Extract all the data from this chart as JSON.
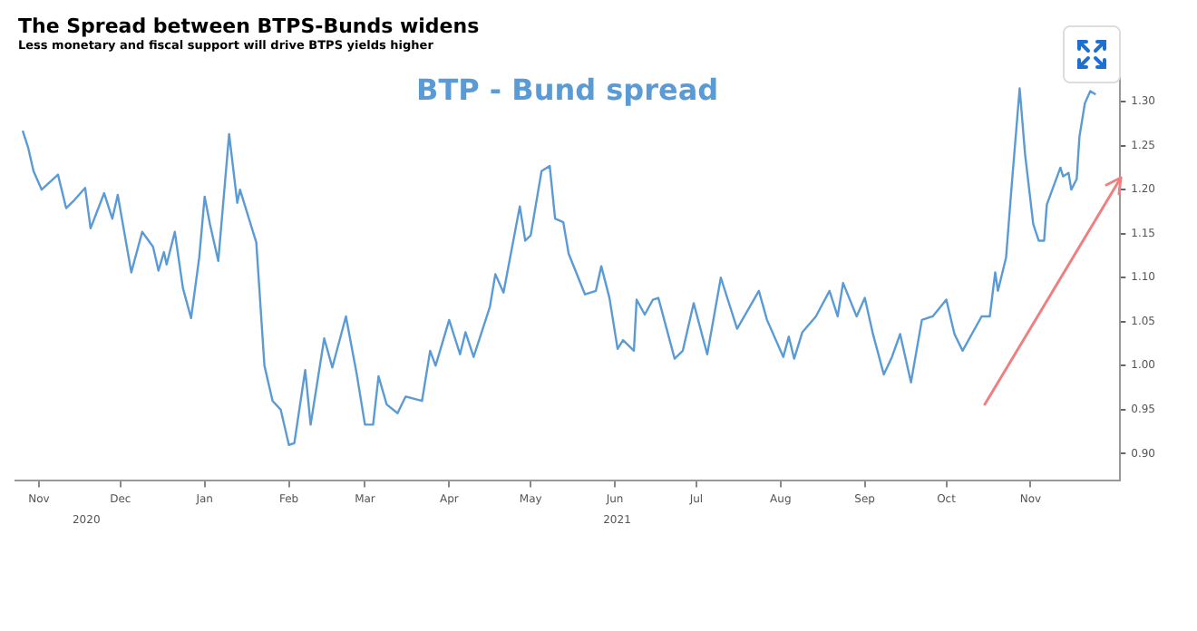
{
  "chart_data": {
    "type": "line",
    "title": "The Spread between BTPS-Bunds widens",
    "subtitle": "Less monetary and fiscal support will drive BTPS yields higher",
    "x": [
      "2020-10-26",
      "2020-10-28",
      "2020-10-30",
      "2020-11-02",
      "2020-11-08",
      "2020-11-11",
      "2020-11-14",
      "2020-11-18",
      "2020-11-20",
      "2020-11-25",
      "2020-11-28",
      "2020-11-30",
      "2020-12-05",
      "2020-12-09",
      "2020-12-13",
      "2020-12-15",
      "2020-12-17",
      "2020-12-18",
      "2020-12-21",
      "2020-12-24",
      "2020-12-27",
      "2020-12-30",
      "2021-01-01",
      "2021-01-03",
      "2021-01-06",
      "2021-01-10",
      "2021-01-13",
      "2021-01-14",
      "2021-01-20",
      "2021-01-23",
      "2021-01-26",
      "2021-01-29",
      "2021-02-01",
      "2021-02-03",
      "2021-02-07",
      "2021-02-09",
      "2021-02-14",
      "2021-02-17",
      "2021-02-22",
      "2021-02-26",
      "2021-03-01",
      "2021-03-04",
      "2021-03-06",
      "2021-03-09",
      "2021-03-13",
      "2021-03-16",
      "2021-03-22",
      "2021-03-25",
      "2021-03-27",
      "2021-04-01",
      "2021-04-05",
      "2021-04-07",
      "2021-04-10",
      "2021-04-16",
      "2021-04-18",
      "2021-04-21",
      "2021-04-27",
      "2021-04-29",
      "2021-05-01",
      "2021-05-05",
      "2021-05-08",
      "2021-05-10",
      "2021-05-13",
      "2021-05-15",
      "2021-05-21",
      "2021-05-25",
      "2021-05-27",
      "2021-05-30",
      "2021-06-02",
      "2021-06-04",
      "2021-06-08",
      "2021-06-09",
      "2021-06-12",
      "2021-06-15",
      "2021-06-17",
      "2021-06-23",
      "2021-06-26",
      "2021-06-30",
      "2021-07-05",
      "2021-07-10",
      "2021-07-16",
      "2021-07-24",
      "2021-07-27",
      "2021-08-02",
      "2021-08-04",
      "2021-08-06",
      "2021-08-09",
      "2021-08-14",
      "2021-08-19",
      "2021-08-22",
      "2021-08-24",
      "2021-08-29",
      "2021-09-01",
      "2021-09-04",
      "2021-09-08",
      "2021-09-11",
      "2021-09-14",
      "2021-09-18",
      "2021-09-22",
      "2021-09-26",
      "2021-10-01",
      "2021-10-04",
      "2021-10-07",
      "2021-10-14",
      "2021-10-17",
      "2021-10-19",
      "2021-10-20",
      "2021-10-23",
      "2021-10-25",
      "2021-10-28",
      "2021-10-30",
      "2021-11-02",
      "2021-11-04",
      "2021-11-06",
      "2021-11-07",
      "2021-11-12",
      "2021-11-13",
      "2021-11-15",
      "2021-11-16",
      "2021-11-18",
      "2021-11-19",
      "2021-11-21",
      "2021-11-23",
      "2021-11-25"
    ],
    "series": [
      {
        "name": "BTP - Bund spread",
        "color": "#5b9bd5",
        "values": [
          1.267,
          1.248,
          1.221,
          1.2,
          1.217,
          1.179,
          1.188,
          1.202,
          1.156,
          1.196,
          1.167,
          1.194,
          1.106,
          1.152,
          1.135,
          1.108,
          1.129,
          1.115,
          1.152,
          1.088,
          1.054,
          1.123,
          1.192,
          1.16,
          1.119,
          1.263,
          1.185,
          1.2,
          1.14,
          1.0,
          0.96,
          0.95,
          0.91,
          0.912,
          0.995,
          0.933,
          1.031,
          0.998,
          1.056,
          0.99,
          0.933,
          0.933,
          0.988,
          0.956,
          0.946,
          0.965,
          0.96,
          1.017,
          1.0,
          1.052,
          1.013,
          1.038,
          1.01,
          1.067,
          1.104,
          1.083,
          1.181,
          1.142,
          1.148,
          1.221,
          1.227,
          1.167,
          1.163,
          1.127,
          1.081,
          1.085,
          1.113,
          1.077,
          1.019,
          1.029,
          1.017,
          1.075,
          1.058,
          1.075,
          1.077,
          1.008,
          1.017,
          1.071,
          1.013,
          1.1,
          1.042,
          1.085,
          1.052,
          1.01,
          1.033,
          1.008,
          1.038,
          1.056,
          1.085,
          1.056,
          1.094,
          1.056,
          1.077,
          1.036,
          0.99,
          1.01,
          1.036,
          0.981,
          1.052,
          1.056,
          1.075,
          1.036,
          1.017,
          1.056,
          1.056,
          1.106,
          1.085,
          1.123,
          1.202,
          1.315,
          1.24,
          1.161,
          1.142,
          1.142,
          1.183,
          1.225,
          1.215,
          1.219,
          1.2,
          1.212,
          1.26,
          1.298,
          1.312,
          1.308
        ]
      }
    ],
    "xlim": [
      "2020-10-23",
      "2021-12-04"
    ],
    "xticks": [
      {
        "value": "2020-11-01",
        "label": "Nov"
      },
      {
        "value": "2020-12-01",
        "label": "Dec"
      },
      {
        "value": "2021-01-01",
        "label": "Jan"
      },
      {
        "value": "2021-02-01",
        "label": "Feb"
      },
      {
        "value": "2021-03-01",
        "label": "Mar"
      },
      {
        "value": "2021-04-01",
        "label": "Apr"
      },
      {
        "value": "2021-05-01",
        "label": "May"
      },
      {
        "value": "2021-06-01",
        "label": "Jun"
      },
      {
        "value": "2021-07-01",
        "label": "Jul"
      },
      {
        "value": "2021-08-01",
        "label": "Aug"
      },
      {
        "value": "2021-09-01",
        "label": "Sep"
      },
      {
        "value": "2021-10-01",
        "label": "Oct"
      },
      {
        "value": "2021-11-01",
        "label": "Nov"
      }
    ],
    "ylim": [
      0.87,
      1.34
    ],
    "yticks": [
      {
        "value": 0.9,
        "label": "0.90"
      },
      {
        "value": 0.95,
        "label": "0.95"
      },
      {
        "value": 1.0,
        "label": "1.00"
      },
      {
        "value": 1.05,
        "label": "1.05"
      },
      {
        "value": 1.1,
        "label": "1.10"
      },
      {
        "value": 1.15,
        "label": "1.15"
      },
      {
        "value": 1.2,
        "label": "1.20"
      },
      {
        "value": 1.25,
        "label": "1.25"
      },
      {
        "value": 1.3,
        "label": "1.30"
      }
    ],
    "annotations": [
      "2020",
      "2021"
    ],
    "grid": false,
    "legend": "top",
    "marker": "none",
    "line_style": "solid"
  }
}
